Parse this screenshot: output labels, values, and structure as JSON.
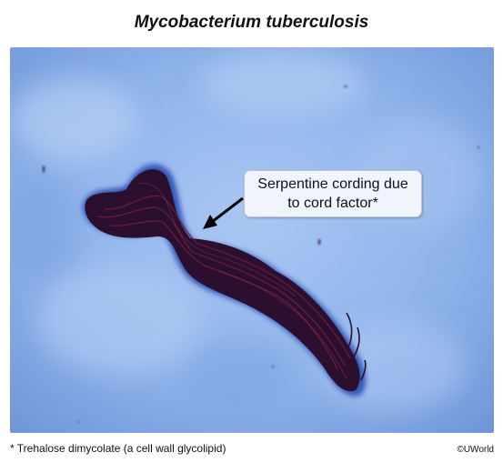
{
  "title": "Mycobacterium tuberculosis",
  "callout": {
    "line1": "Serpentine cording due",
    "line2": "to cord factor*"
  },
  "footnote": "* Trehalose dimycolate (a cell wall glycolipid)",
  "credit": "©UWorld",
  "colors": {
    "background_stain": "#8fb4ea",
    "organism": "#2a0f2e",
    "callout_bg": "#f4f7fc"
  }
}
